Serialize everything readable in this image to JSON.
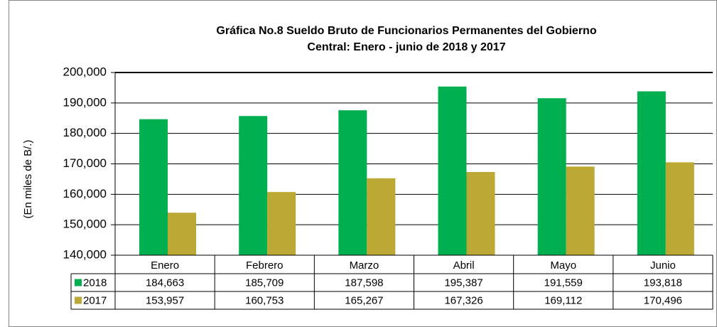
{
  "chart_data": {
    "type": "bar",
    "title": [
      "Gráfica No.8 Sueldo Bruto de Funcionarios Permanentes del Gobierno",
      "Central: Enero - junio de 2018 y 2017"
    ],
    "y_label": "(En miles de B/.)",
    "categories": [
      "Enero",
      "Febrero",
      "Marzo",
      "Abril",
      "Mayo",
      "Junio"
    ],
    "series": [
      {
        "name": "2018",
        "color": "#00b050",
        "values": [
          184663,
          185709,
          187598,
          195387,
          191559,
          193818
        ],
        "value_labels": [
          "184,663",
          "185,709",
          "187,598",
          "195,387",
          "191,559",
          "193,818"
        ]
      },
      {
        "name": "2017",
        "color": "#bca935",
        "values": [
          153957,
          160753,
          165267,
          167326,
          169112,
          170496
        ],
        "value_labels": [
          "153,957",
          "160,753",
          "165,267",
          "167,326",
          "169,112",
          "170,496"
        ]
      }
    ],
    "ylim": [
      140000,
      200000
    ],
    "yticks": [
      {
        "value": 140000,
        "label": "140,000"
      },
      {
        "value": 150000,
        "label": "150,000"
      },
      {
        "value": 160000,
        "label": "160,000"
      },
      {
        "value": 170000,
        "label": "170,000"
      },
      {
        "value": 180000,
        "label": "180,000"
      },
      {
        "value": 190000,
        "label": "190,000"
      },
      {
        "value": 200000,
        "label": "200,000"
      }
    ],
    "grid": true
  }
}
